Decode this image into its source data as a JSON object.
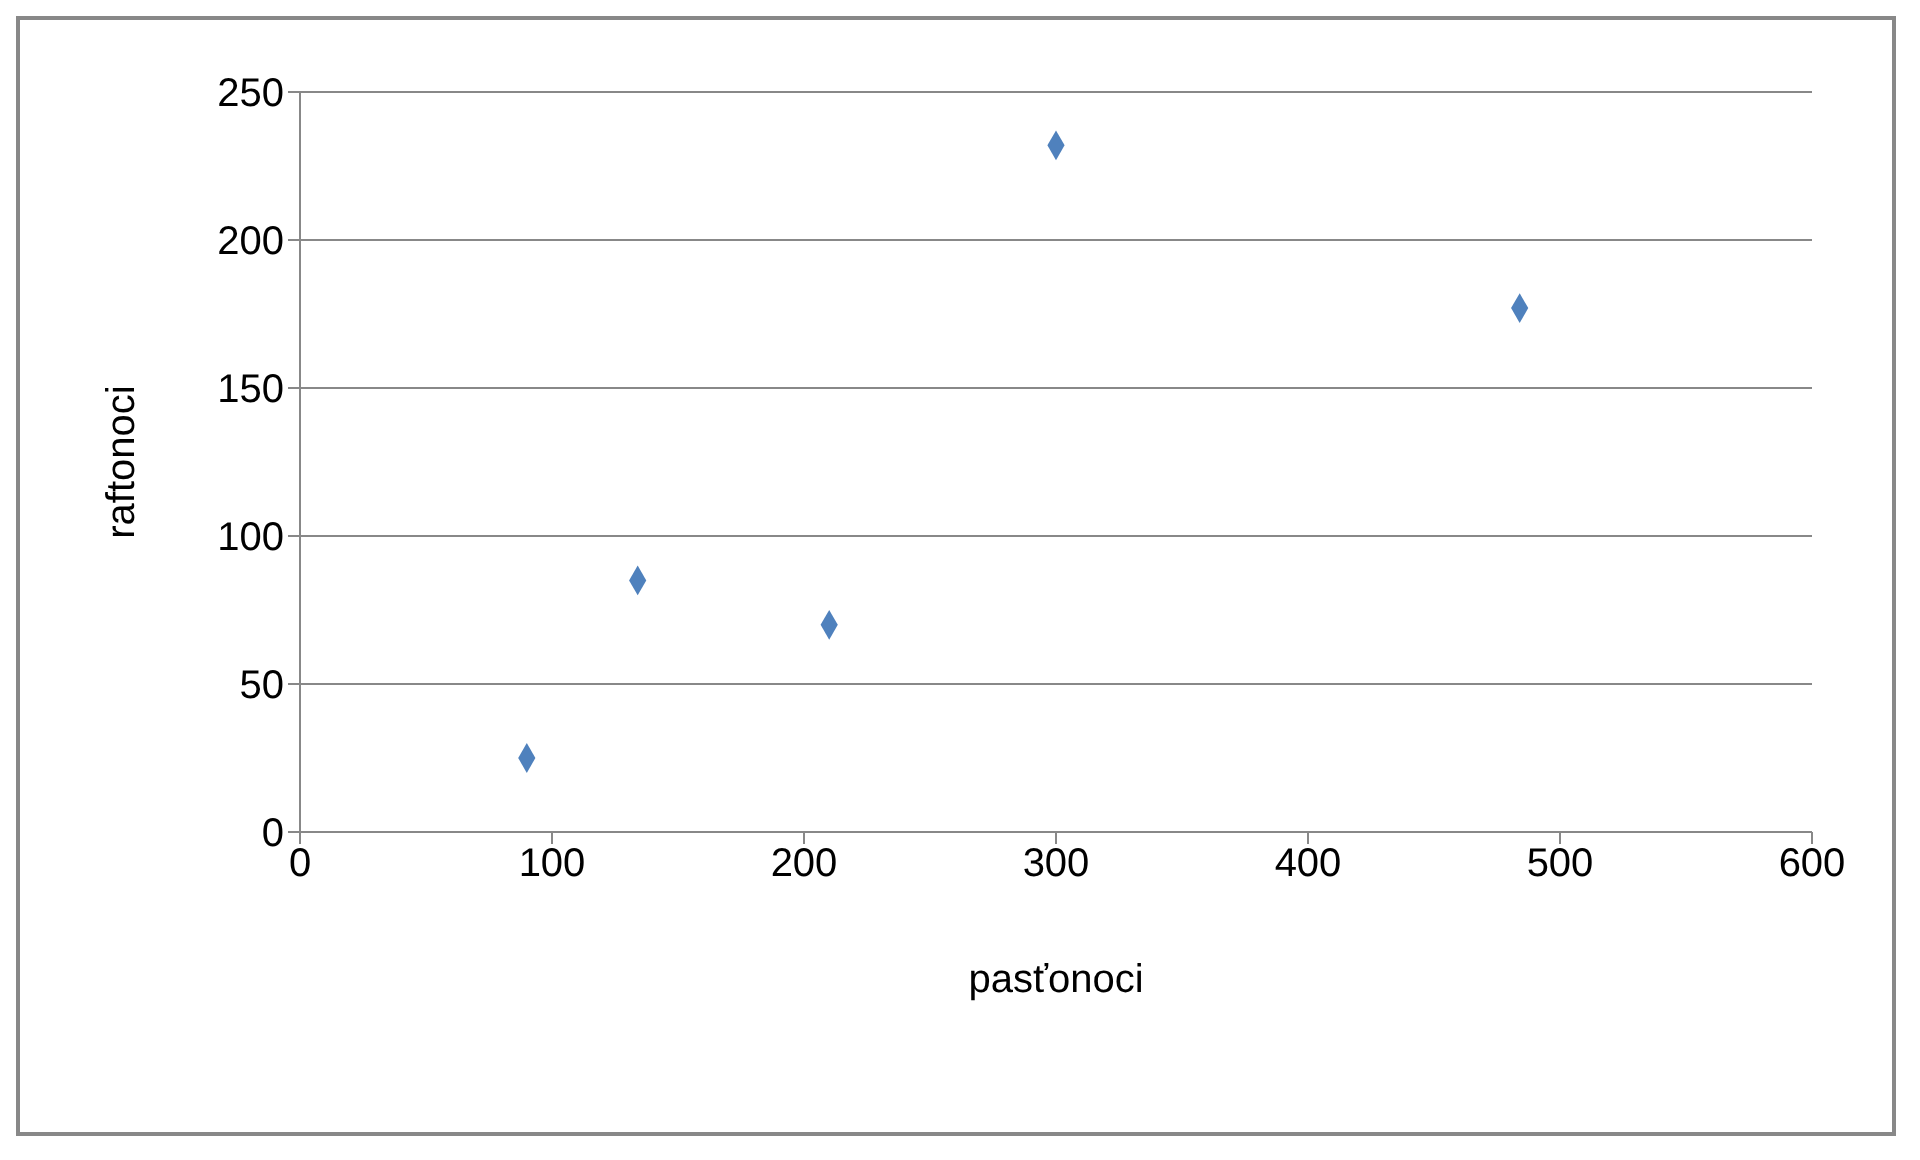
{
  "chart_data": {
    "type": "scatter",
    "xlabel": "pasťonoci",
    "ylabel": "raftonoci",
    "x": [
      90,
      134,
      210,
      300,
      484
    ],
    "series": [
      {
        "color": "#4f81bd",
        "values": [
          25,
          85,
          70,
          232,
          177
        ]
      }
    ],
    "xlim": [
      0,
      600
    ],
    "xticks": [
      0,
      100,
      200,
      300,
      400,
      500,
      600
    ],
    "ylim": [
      0,
      250
    ],
    "yticks": [
      0,
      50,
      100,
      150,
      200,
      250
    ],
    "grid": "y",
    "marker": "diamond",
    "legend": false
  }
}
